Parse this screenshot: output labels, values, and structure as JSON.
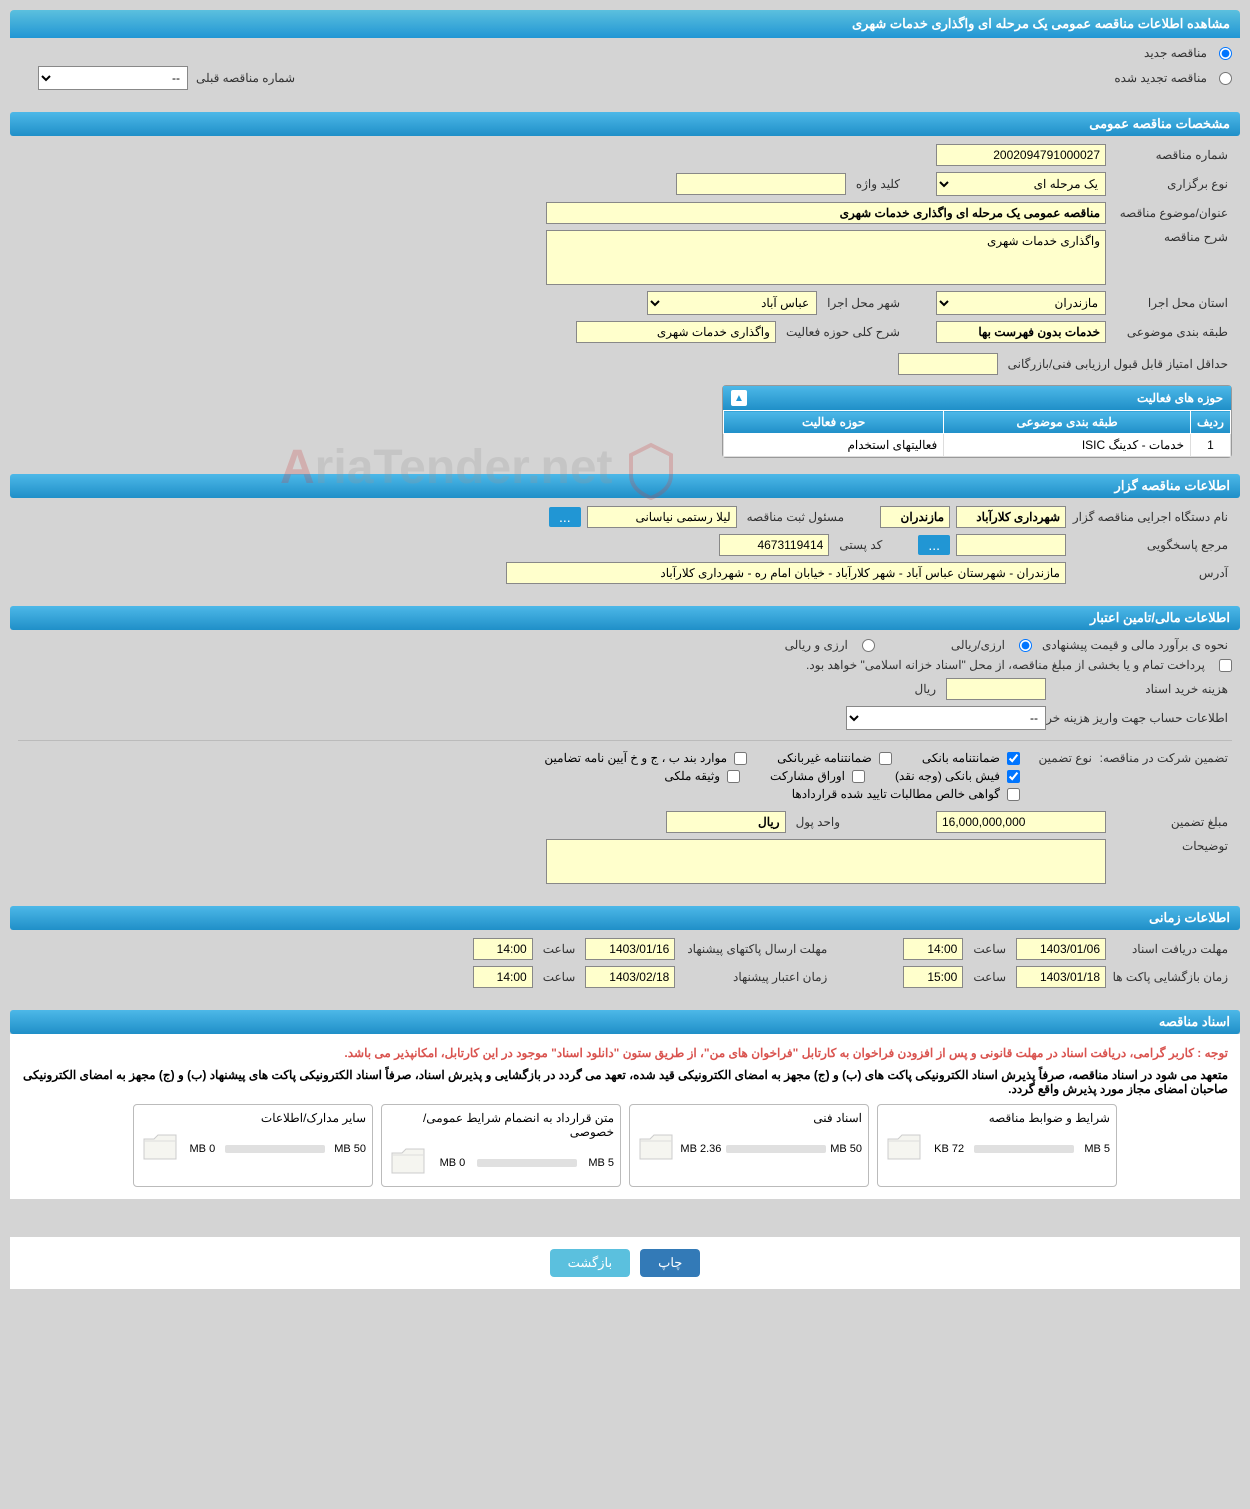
{
  "pageTitle": "مشاهده اطلاعات مناقصه عمومی یک مرحله ای واگذاری خدمات شهری",
  "tenderType": {
    "newLabel": "مناقصه جدید",
    "renewedLabel": "مناقصه تجدید شده",
    "prevNumberLabel": "شماره مناقصه قبلی",
    "prevNumberPlaceholder": "--"
  },
  "generalSpec": {
    "header": "مشخصات مناقصه عمومی",
    "tenderNumberLabel": "شماره مناقصه",
    "tenderNumber": "2002094791000027",
    "holdingTypeLabel": "نوع برگزاری",
    "holdingType": "یک مرحله ای",
    "keywordLabel": "کلید واژه",
    "keyword": "",
    "titleLabel": "عنوان/موضوع مناقصه",
    "title": "مناقصه عمومی یک مرحله ای واگذاری خدمات شهری",
    "descLabel": "شرح مناقصه",
    "desc": "واگذاری خدمات شهری",
    "provinceLabel": "استان محل اجرا",
    "province": "مازندران",
    "cityLabel": "شهر محل اجرا",
    "city": "عباس آباد",
    "categoryLabel": "طبقه بندی موضوعی",
    "category": "خدمات بدون فهرست بها",
    "activityDescLabel": "شرح کلی حوزه فعالیت",
    "activityDesc": "واگذاری خدمات شهری",
    "minScoreLabel": "حداقل امتیاز قابل قبول ارزیابی فنی/بازرگانی",
    "minScore": ""
  },
  "activityPanel": {
    "title": "حوزه های فعالیت",
    "columns": {
      "row": "ردیف",
      "category": "طبقه بندی موضوعی",
      "activity": "حوزه فعالیت"
    },
    "rows": [
      {
        "num": "1",
        "category": "خدمات - کدینگ ISIC",
        "activity": "فعالیتهای استخدام"
      }
    ]
  },
  "organizerInfo": {
    "header": "اطلاعات مناقصه گزار",
    "orgNameLabel": "نام دستگاه اجرایی مناقصه گزار",
    "orgName1": "شهرداری کلارآباد",
    "orgName2": "مازندران",
    "regOfficerLabel": "مسئول ثبت مناقصه",
    "regOfficer": "لیلا رستمی نیاسانی",
    "responseRefLabel": "مرجع پاسخگویی",
    "responseRef": "",
    "postalCodeLabel": "کد پستی",
    "postalCode": "4673119414",
    "addressLabel": "آدرس",
    "address": "مازندران - شهرستان عباس آباد - شهر کلارآباد - خیابان امام ره - شهرداری کلارآباد"
  },
  "financialInfo": {
    "header": "اطلاعات مالی/تامین اعتبار",
    "estimateMethodLabel": "نحوه ی برآورد مالی و قیمت پیشنهادی",
    "opt1": "ارزی/ریالی",
    "opt2": "ارزی و ریالی",
    "paymentNote": "پرداخت تمام و یا بخشی از مبلغ مناقصه، از محل \"اسناد خزانه اسلامی\" خواهد بود.",
    "docCostLabel": "هزینه خرید اسناد",
    "docCostUnit": "ریال",
    "accountInfoLabel": "اطلاعات حساب جهت واریز هزینه خرید اسناد",
    "accountInfoPlaceholder": "--",
    "guaranteeLabel": "تضمین شرکت در مناقصه:",
    "guaranteeTypeLabel": "نوع تضمین",
    "guaranteeTypes": {
      "bank": "ضمانتنامه بانکی",
      "nonbank": "ضمانتنامه غیربانکی",
      "regulation": "موارد بند ب ، ج و خ آیین نامه تضامین",
      "fish": "فیش بانکی (وجه نقد)",
      "securities": "اوراق مشارکت",
      "property": "وثیقه ملکی",
      "certificate": "گواهی خالص مطالبات تایید شده قراردادها"
    },
    "guaranteeAmountLabel": "مبلغ تضمین",
    "guaranteeAmount": "16,000,000,000",
    "currencyUnitLabel": "واحد پول",
    "currencyUnit": "ریال",
    "explanationLabel": "توضیحات",
    "explanation": ""
  },
  "timeInfo": {
    "header": "اطلاعات زمانی",
    "deadlineLabel": "مهلت دریافت اسناد",
    "deadlineDate": "1403/01/06",
    "deadlineTimeLabel": "ساعت",
    "deadlineTime": "14:00",
    "submitLabel": "مهلت ارسال پاکتهای پیشنهاد",
    "submitDate": "1403/01/16",
    "submitTimeLabel": "ساعت",
    "submitTime": "14:00",
    "openLabel": "زمان بازگشایی پاکت ها",
    "openDate": "1403/01/18",
    "openTimeLabel": "ساعت",
    "openTime": "15:00",
    "validityLabel": "زمان اعتبار پیشنهاد",
    "validityDate": "1403/02/18",
    "validityTimeLabel": "ساعت",
    "validityTime": "14:00"
  },
  "docs": {
    "header": "اسناد مناقصه",
    "note1": "توجه : کاربر گرامی، دریافت اسناد در مهلت قانونی و پس از افزودن فراخوان به کارتابل \"فراخوان های من\"، از طریق ستون \"دانلود اسناد\" موجود در این کارتابل، امکانپذیر می باشد.",
    "note2": "متعهد می شود در اسناد مناقصه، صرفاً پذیرش اسناد الکترونیکی پاکت های (ب) و (ج) مجهز به امضای الکترونیکی قید شده، تعهد می گردد در بازگشایی و پذیرش اسناد، صرفاً اسناد الکترونیکی پاکت های پیشنهاد (ب) و (ج) مجهز به امضای الکترونیکی صاحبان امضای مجاز مورد پذیرش واقع گردد.",
    "panels": [
      {
        "title": "شرایط و ضوابط مناقصه",
        "max": "5 MB",
        "used": "72 KB",
        "progress": 2
      },
      {
        "title": "اسناد فنی",
        "max": "50 MB",
        "used": "2.36 MB",
        "progress": 5
      },
      {
        "title": "متن قرارداد به انضمام شرایط عمومی/خصوصی",
        "max": "5 MB",
        "used": "0 MB",
        "progress": 0
      },
      {
        "title": "سایر مدارک/اطلاعات",
        "max": "50 MB",
        "used": "0 MB",
        "progress": 0
      }
    ]
  },
  "buttons": {
    "print": "چاپ",
    "back": "بازگشت"
  },
  "watermark": {
    "text": "riaTender.net"
  }
}
